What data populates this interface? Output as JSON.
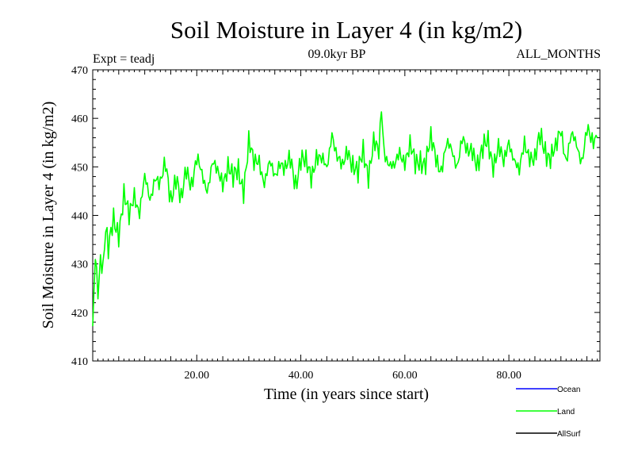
{
  "chart_data": {
    "type": "line",
    "title": "Soil Moisture in Layer 4 (in kg/m2)",
    "subtitle": "09.0kyr BP",
    "experiment_label": "Expt = teadj",
    "months_label": "ALL_MONTHS",
    "xlabel": "Time (in years since start)",
    "ylabel": "Soil Moisture in Layer 4 (in kg/m2)",
    "xlim": [
      0,
      97.5
    ],
    "ylim": [
      410,
      470
    ],
    "x_ticks": [
      20,
      40,
      60,
      80
    ],
    "x_tick_labels": [
      "20.00",
      "40.00",
      "60.00",
      "80.00"
    ],
    "y_ticks": [
      410,
      420,
      430,
      440,
      450,
      460,
      470
    ],
    "y_tick_labels": [
      "410",
      "420",
      "430",
      "440",
      "450",
      "460",
      "470"
    ],
    "legend": [
      {
        "name": "Ocean",
        "color": "#0000ff"
      },
      {
        "name": "Land",
        "color": "#00ff00"
      },
      {
        "name": "AllSurf",
        "color": "#000000"
      }
    ],
    "series": [
      {
        "name": "Land",
        "color": "#00ff00",
        "x": [
          0,
          0.5,
          1,
          1.5,
          2,
          2.5,
          3,
          4,
          5,
          6,
          7,
          8,
          9,
          10,
          11,
          12,
          13,
          14,
          15,
          16,
          17,
          18,
          19,
          20,
          21,
          22,
          23,
          24,
          25,
          26,
          27,
          28,
          29,
          30,
          31,
          32,
          33,
          34,
          35,
          36,
          37,
          38,
          39,
          40,
          41,
          42,
          43,
          44,
          45,
          46,
          47,
          48,
          49,
          50,
          51,
          52,
          53,
          54,
          55,
          55.5,
          56,
          57,
          58,
          59,
          60,
          61,
          62,
          63,
          64,
          65,
          66,
          67,
          68,
          69,
          70,
          71,
          72,
          73,
          74,
          75,
          76,
          77,
          78,
          79,
          80,
          81,
          82,
          83,
          84,
          85,
          86,
          87,
          88,
          89,
          90,
          91,
          92,
          93,
          94,
          95,
          96,
          97
        ],
        "values": [
          415.5,
          431.5,
          424.5,
          432,
          430,
          437.5,
          432,
          439,
          437,
          444,
          439,
          445,
          441,
          447,
          443,
          449,
          446,
          450,
          444,
          448,
          442,
          450,
          447,
          451,
          448,
          446,
          451,
          448,
          447,
          451,
          447,
          449,
          446,
          455,
          450,
          452,
          447,
          450,
          448,
          452,
          449,
          451,
          447,
          452,
          450,
          448,
          453,
          451,
          449,
          458,
          452,
          449,
          454,
          451,
          448,
          453,
          449,
          455,
          452,
          462,
          454,
          451,
          449,
          453,
          452,
          454,
          450,
          452,
          451,
          455,
          452,
          450,
          454,
          453,
          451,
          456,
          452,
          454,
          451,
          453,
          455,
          451,
          454,
          450,
          456,
          452,
          448,
          455,
          453,
          451,
          456,
          454,
          452,
          453,
          458,
          452,
          456,
          454,
          452,
          458,
          454,
          456
        ]
      }
    ]
  }
}
